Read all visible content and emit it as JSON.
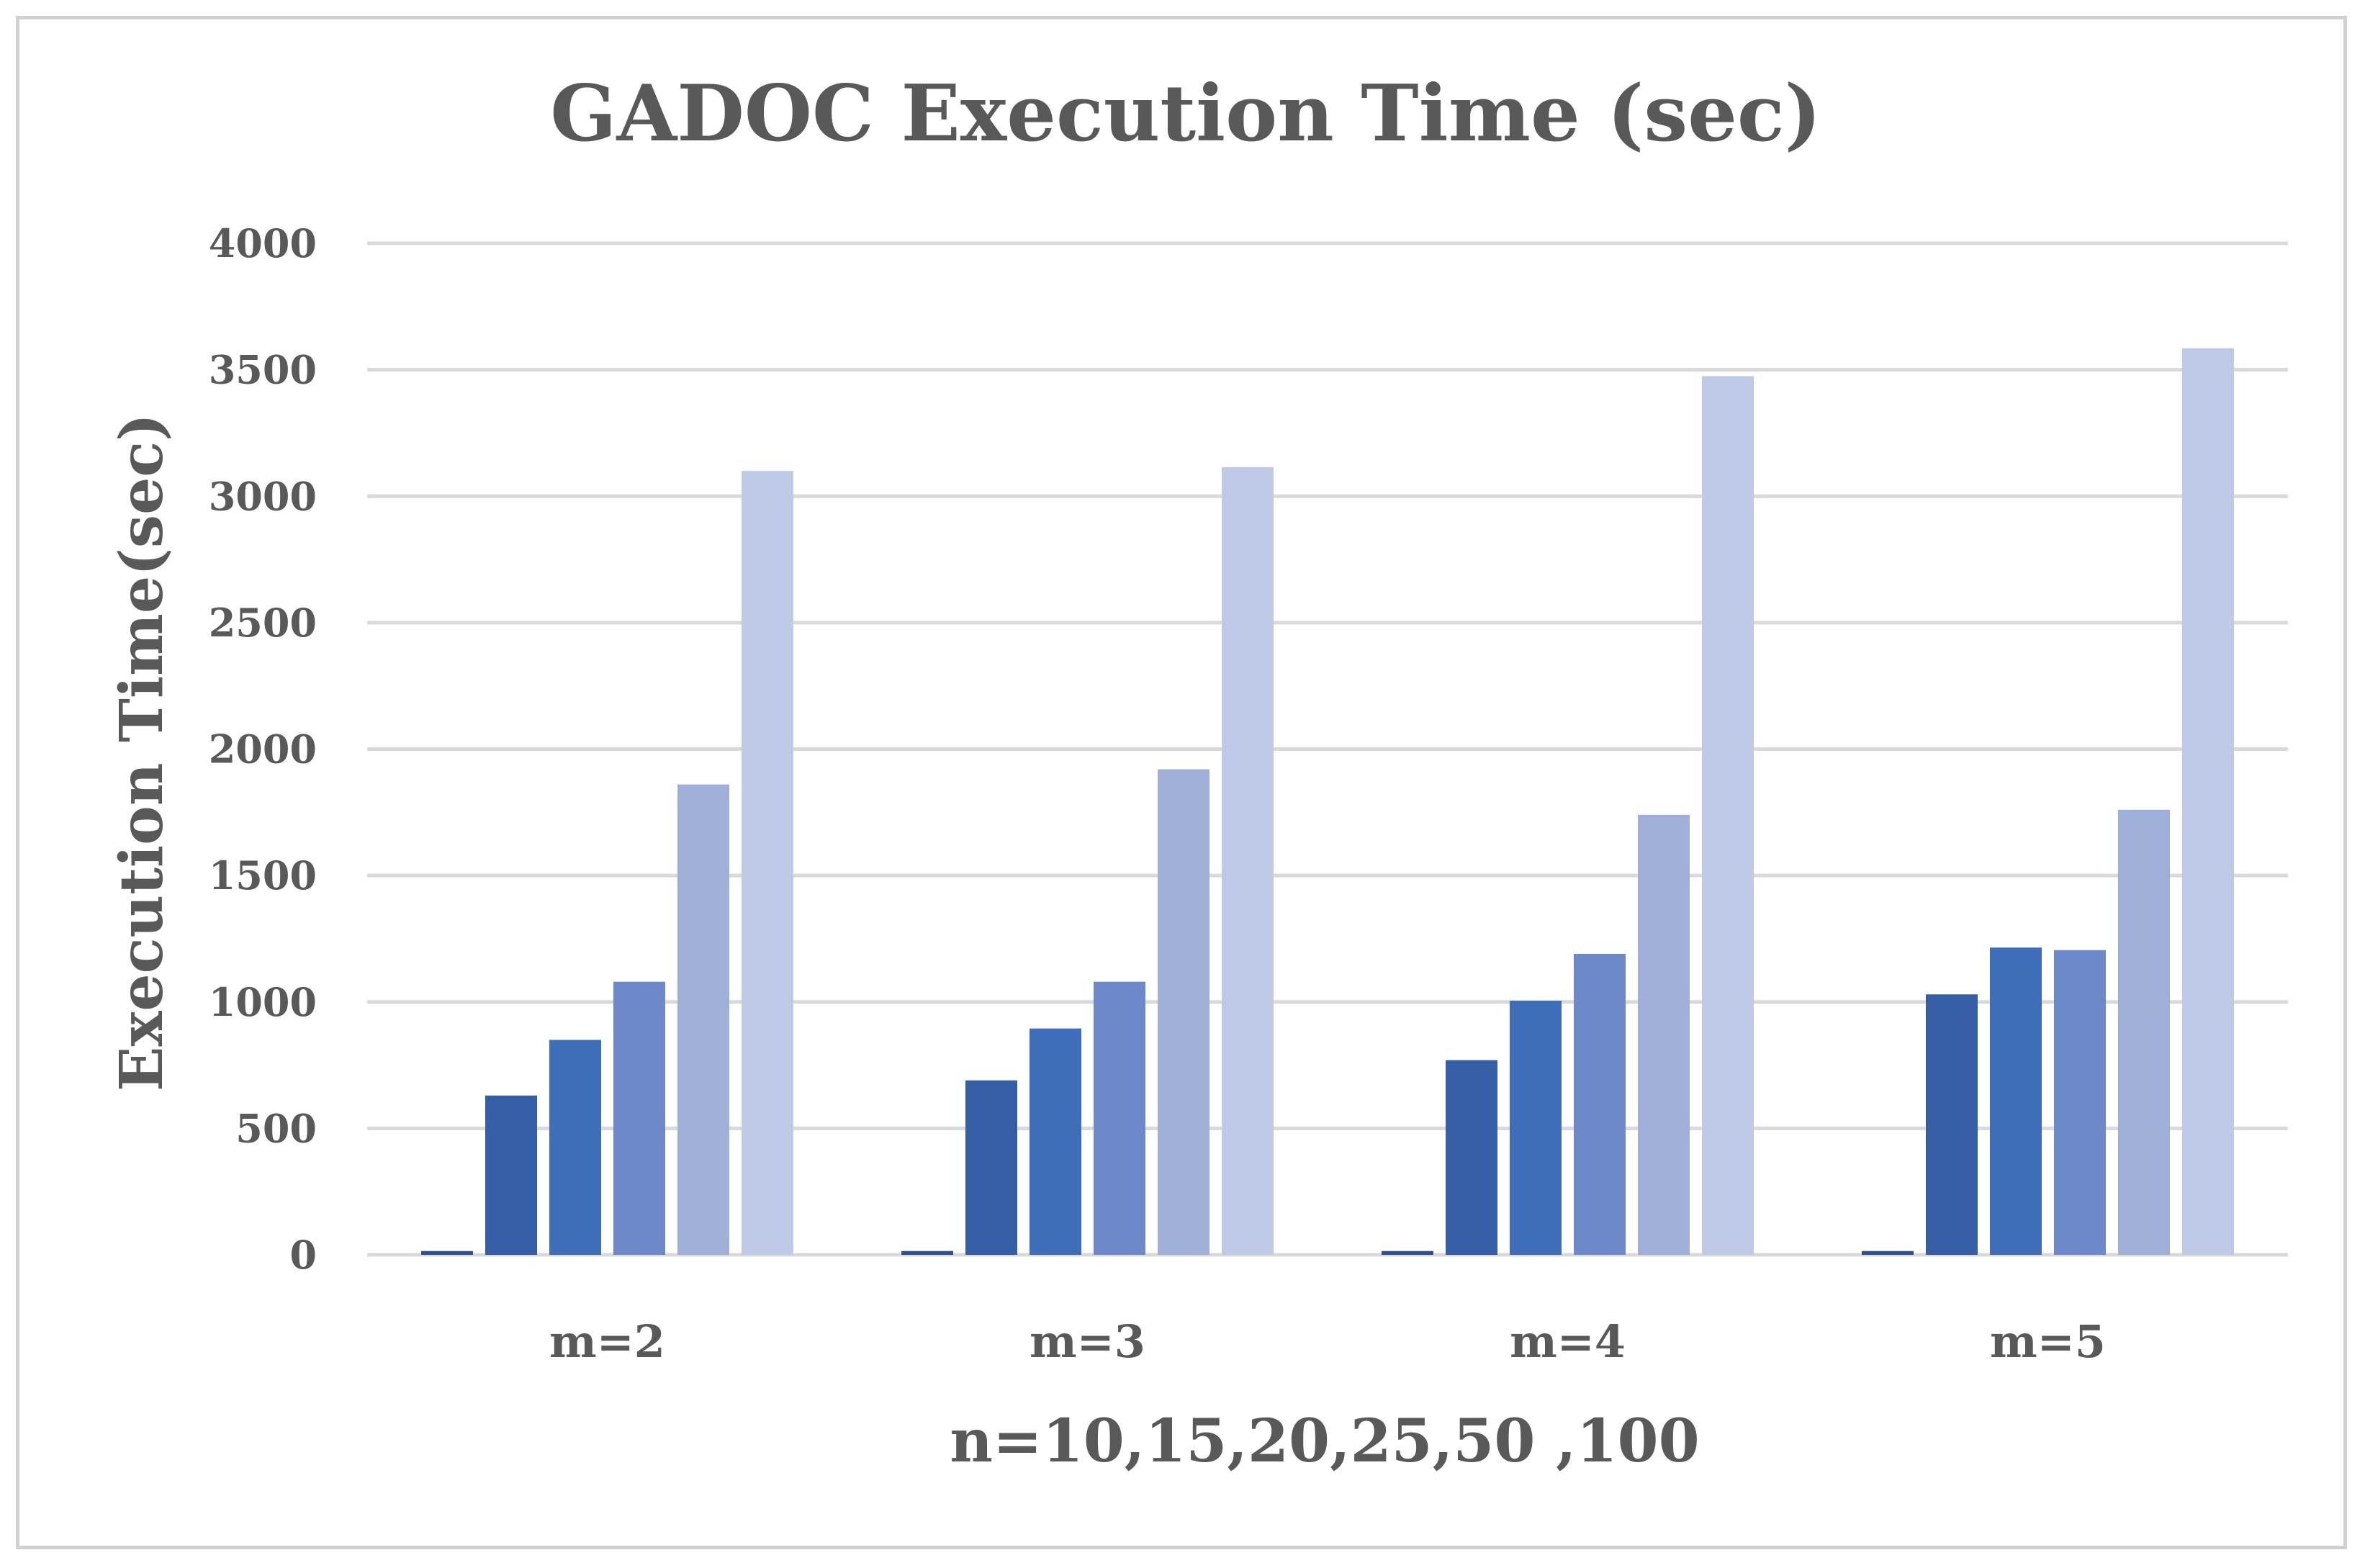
{
  "chart_data": {
    "type": "bar",
    "title": "GADOC Execution Time (sec)",
    "xlabel": "n=10,15,20,25,50 ,100",
    "ylabel": "Execution Time(sec)",
    "ylim": [
      0,
      4000
    ],
    "yticks": [
      0,
      500,
      1000,
      1500,
      2000,
      2500,
      3000,
      3500,
      4000
    ],
    "categories": [
      "m=2",
      "m=3",
      "m=4",
      "m=5"
    ],
    "grid": true,
    "legend": "none",
    "series": [
      {
        "values": [
          15,
          15,
          15,
          15
        ],
        "color": "#2f4f8f"
      },
      {
        "values": [
          630,
          690,
          770,
          1030
        ],
        "color": "#355ea4"
      },
      {
        "values": [
          850,
          895,
          1005,
          1215
        ],
        "color": "#3e6db9"
      },
      {
        "values": [
          1080,
          1080,
          1190,
          1205
        ],
        "color": "#6d89c9"
      },
      {
        "values": [
          1860,
          1920,
          1740,
          1760
        ],
        "color": "#9fafd8"
      },
      {
        "values": [
          3100,
          3115,
          3475,
          3585
        ],
        "color": "#bfcae6"
      }
    ]
  }
}
